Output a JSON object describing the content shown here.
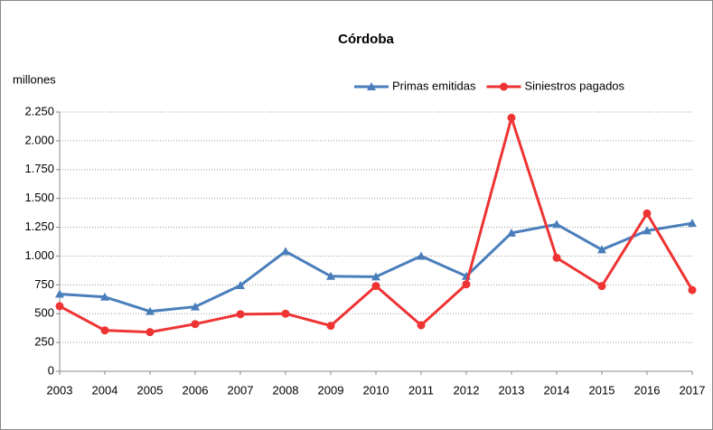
{
  "chart_data": {
    "type": "line",
    "title": "Córdoba",
    "ylabel": "millones",
    "categories": [
      "2003",
      "2004",
      "2005",
      "2006",
      "2007",
      "2008",
      "2009",
      "2010",
      "2011",
      "2012",
      "2013",
      "2014",
      "2015",
      "2016",
      "2017"
    ],
    "series": [
      {
        "name": "Primas emitidas",
        "color": "#4a7ebb",
        "marker": "triangle",
        "values": [
          670,
          645,
          520,
          560,
          745,
          1040,
          825,
          820,
          1000,
          825,
          1200,
          1275,
          1055,
          1220,
          1285
        ]
      },
      {
        "name": "Siniestros pagados",
        "color": "#ee3333",
        "marker": "circle",
        "values": [
          565,
          355,
          340,
          410,
          495,
          500,
          395,
          740,
          400,
          755,
          2200,
          985,
          740,
          1370,
          705
        ]
      }
    ],
    "ylim": [
      0,
      2250
    ],
    "yticks": [
      0,
      250,
      500,
      750,
      {
        "value": 1000,
        "label": "1.000"
      },
      {
        "value": 1250,
        "label": "1.250"
      },
      {
        "value": 1500,
        "label": "1.500"
      },
      {
        "value": 1750,
        "label": "1.750"
      },
      {
        "value": 2000,
        "label": "2.000"
      },
      {
        "value": 2250,
        "label": "2.250"
      }
    ],
    "grid": true,
    "legend": "upper right"
  }
}
